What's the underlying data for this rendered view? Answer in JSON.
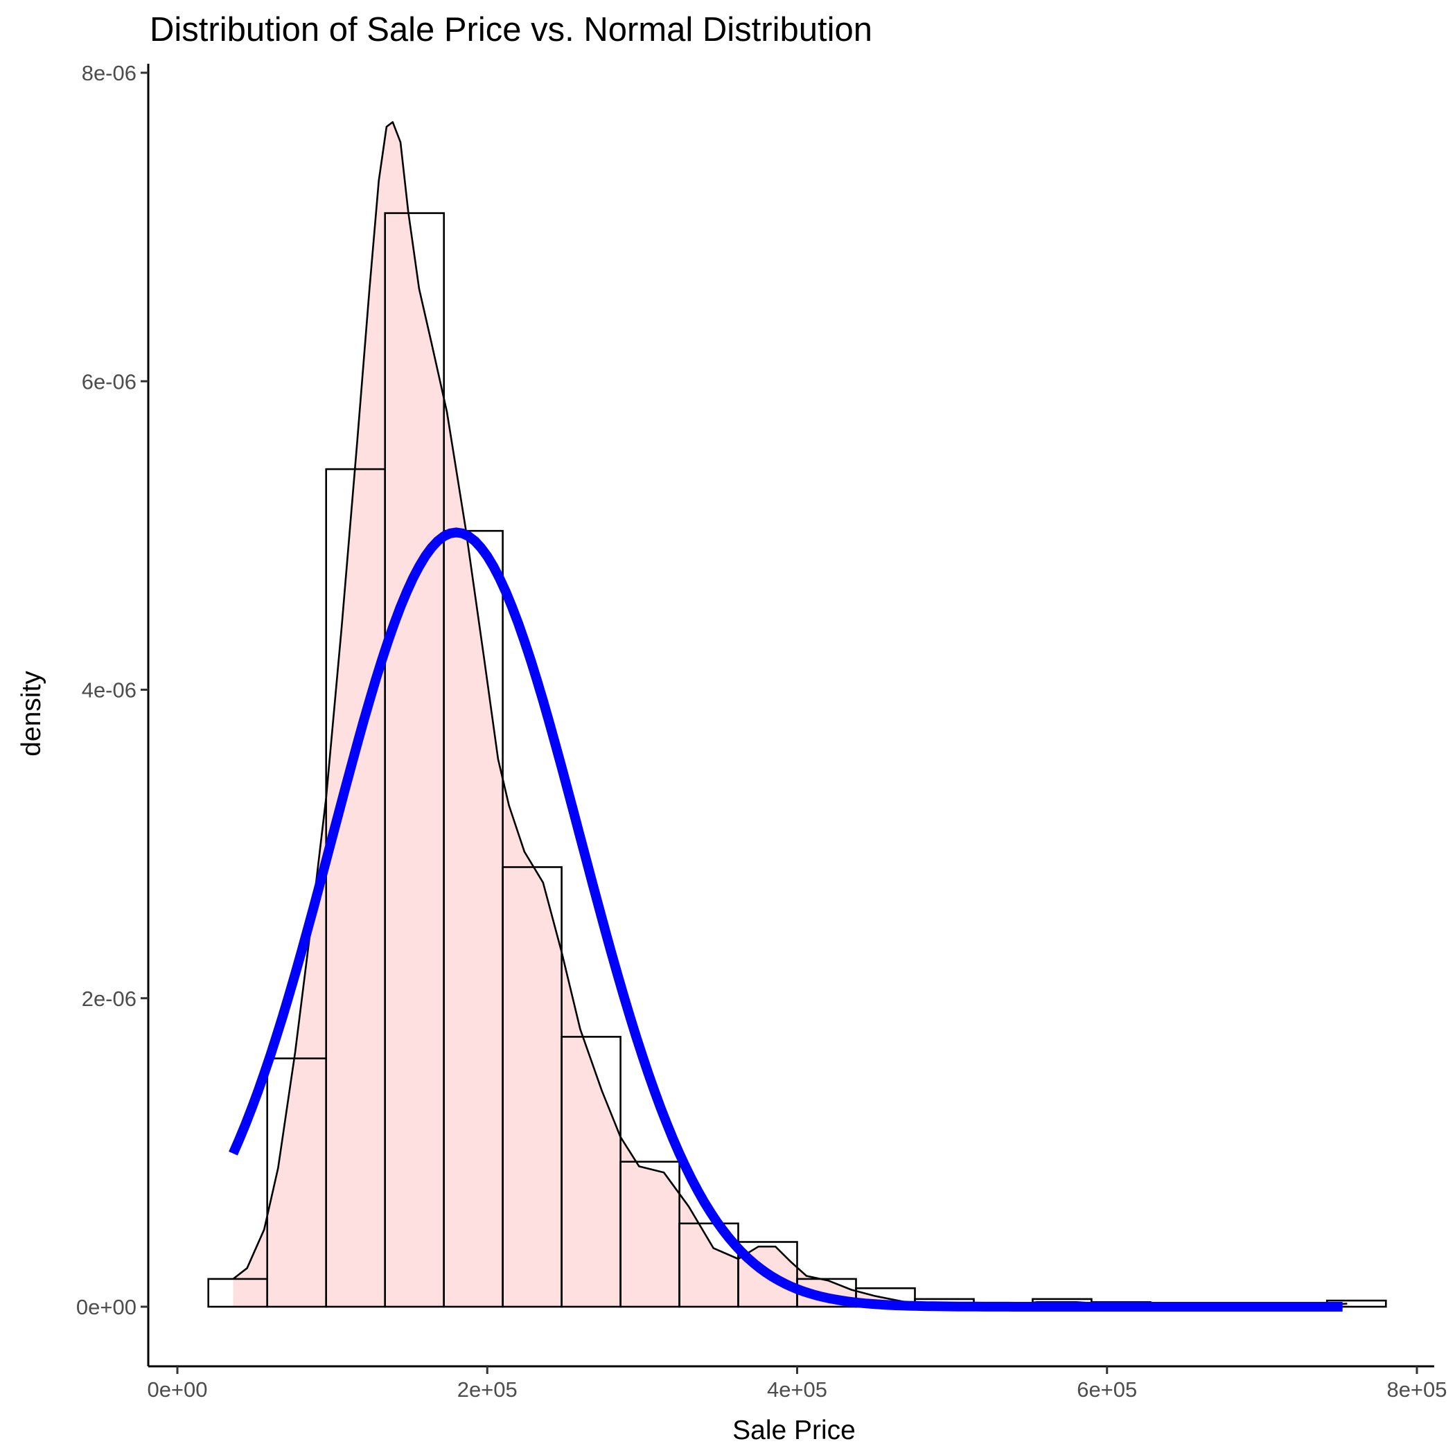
{
  "chart_data": {
    "type": "histogram",
    "title": "Distribution of Sale Price vs. Normal Distribution",
    "xlabel": "Sale Price",
    "ylabel": "density",
    "xlim": [
      -21000,
      810000
    ],
    "ylim": [
      -3.9e-07,
      8.1e-06
    ],
    "x_ticks": [
      {
        "value": 0,
        "label": "0e+00"
      },
      {
        "value": 200000,
        "label": "2e+05"
      },
      {
        "value": 400000,
        "label": "4e+05"
      },
      {
        "value": 600000,
        "label": "6e+05"
      },
      {
        "value": 800000,
        "label": "8e+05"
      }
    ],
    "y_ticks": [
      {
        "value": 0,
        "label": "0e+00"
      },
      {
        "value": 2e-06,
        "label": "2e-06"
      },
      {
        "value": 4e-06,
        "label": "4e-06"
      },
      {
        "value": 6e-06,
        "label": "6e-06"
      },
      {
        "value": 8e-06,
        "label": "8e-06"
      }
    ],
    "grid": false,
    "histogram": {
      "bin_width": 38000,
      "edges": [
        20000,
        58000,
        96000,
        134000,
        172000,
        210000,
        248000,
        286000,
        324000,
        362000,
        400000,
        438000,
        476000,
        514000,
        552000,
        590000,
        628000,
        666000,
        704000,
        742000,
        780000
      ],
      "values": [
        1.8e-07,
        1.61e-06,
        5.43e-06,
        7.09e-06,
        5.03e-06,
        2.85e-06,
        1.75e-06,
        9.4e-07,
        5.4e-07,
        4.2e-07,
        1.8e-07,
        1.2e-07,
        5e-08,
        0,
        5e-08,
        3e-08,
        0,
        0,
        0,
        4e-08
      ],
      "fill": "none",
      "stroke": "#000000"
    },
    "density": {
      "x": [
        36000,
        45000,
        56000,
        65000,
        76000,
        86000,
        96000,
        106000,
        116000,
        124000,
        130000,
        135000,
        139000,
        144000,
        149000,
        156000,
        164000,
        174000,
        186000,
        198000,
        207000,
        214000,
        224000,
        236000,
        248000,
        260000,
        274000,
        286000,
        298000,
        314000,
        330000,
        346000,
        362000,
        375000,
        386000,
        396000,
        406000,
        420000,
        435000,
        450000,
        470000,
        500000,
        530000,
        555000,
        580000,
        610000,
        640000,
        680000,
        720000,
        755000
      ],
      "y": [
        1.8e-07,
        2.5e-07,
        5e-07,
        9e-07,
        1.65e-06,
        2.45e-06,
        3.3e-06,
        4.4e-06,
        5.6e-06,
        6.6e-06,
        7.3e-06,
        7.65e-06,
        7.68e-06,
        7.55e-06,
        7.1e-06,
        6.6e-06,
        6.25e-06,
        5.8e-06,
        5.05e-06,
        4.2e-06,
        3.55e-06,
        3.25e-06,
        2.95e-06,
        2.75e-06,
        2.3e-06,
        1.8e-06,
        1.4e-06,
        1.1e-06,
        9.1e-07,
        8.7e-07,
        6.5e-07,
        3.8e-07,
        3.1e-07,
        3.9e-07,
        3.9e-07,
        2.9e-07,
        2e-07,
        1.7e-07,
        1.1e-07,
        7e-08,
        3e-08,
        1e-08,
        0,
        3e-08,
        3e-08,
        1e-08,
        1e-08,
        0,
        0,
        2e-08
      ],
      "fill": "#ffe0e0",
      "stroke": "#000000"
    },
    "normal": {
      "mean": 180000,
      "sd": 80000,
      "peak": 5.02e-06,
      "x_range": [
        36000,
        755000
      ],
      "color": "#0000ff"
    }
  }
}
